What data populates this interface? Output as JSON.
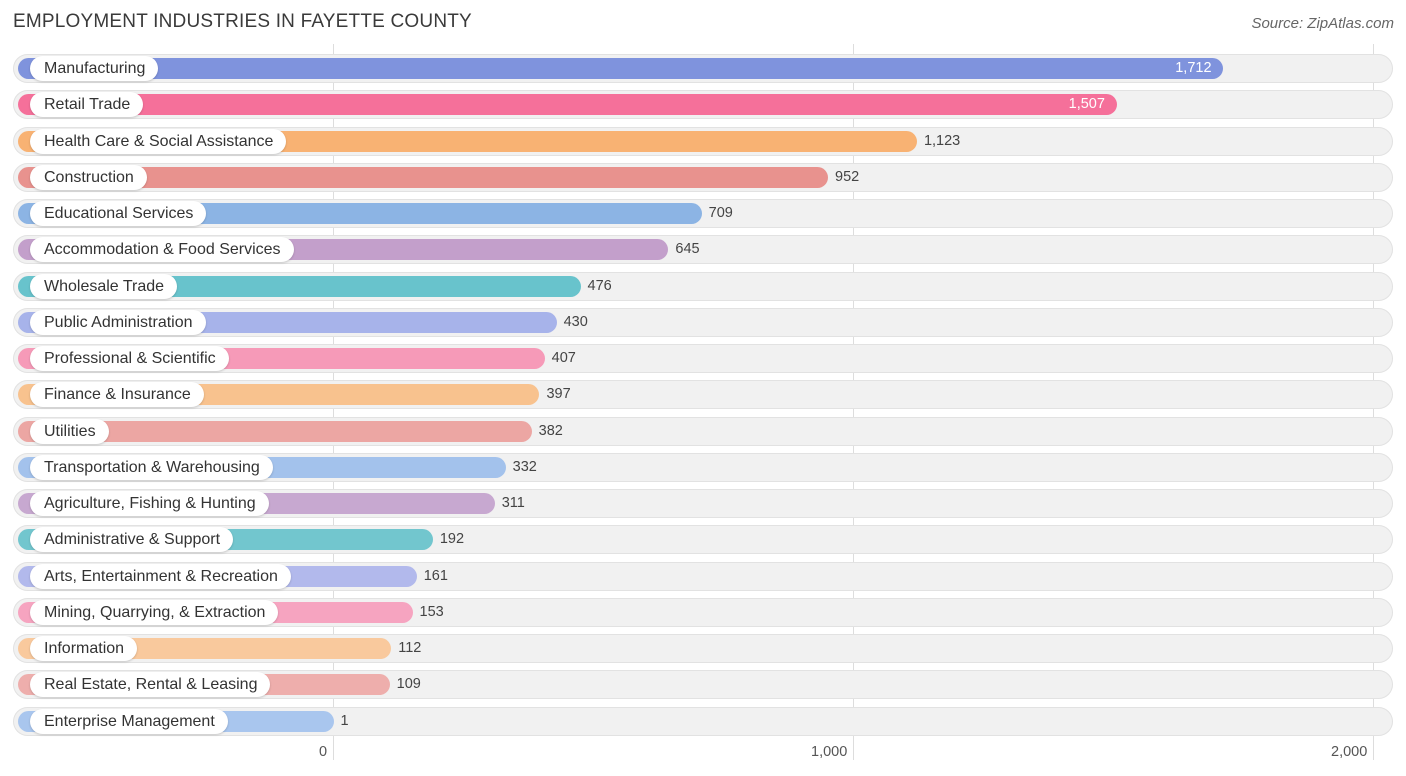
{
  "title": "EMPLOYMENT INDUSTRIES IN FAYETTE COUNTY",
  "source": "Source: ZipAtlas.com",
  "chart_data": {
    "type": "bar",
    "orientation": "horizontal",
    "title": "EMPLOYMENT INDUSTRIES IN FAYETTE COUNTY",
    "xlim": [
      0,
      2000
    ],
    "ticks": [
      {
        "value": 0,
        "label": "0"
      },
      {
        "value": 1000,
        "label": "1,000"
      },
      {
        "value": 2000,
        "label": "2,000"
      }
    ],
    "categories": [
      "Manufacturing",
      "Retail Trade",
      "Health Care & Social Assistance",
      "Construction",
      "Educational Services",
      "Accommodation & Food Services",
      "Wholesale Trade",
      "Public Administration",
      "Professional & Scientific",
      "Finance & Insurance",
      "Utilities",
      "Transportation & Warehousing",
      "Agriculture, Fishing & Hunting",
      "Administrative & Support",
      "Arts, Entertainment & Recreation",
      "Mining, Quarrying, & Extraction",
      "Information",
      "Real Estate, Rental & Leasing",
      "Enterprise Management"
    ],
    "values": [
      1712,
      1507,
      1123,
      952,
      709,
      645,
      476,
      430,
      407,
      397,
      382,
      332,
      311,
      192,
      161,
      153,
      112,
      109,
      1
    ],
    "value_labels": [
      "1,712",
      "1,507",
      "1,123",
      "952",
      "709",
      "645",
      "476",
      "430",
      "407",
      "397",
      "382",
      "332",
      "311",
      "192",
      "161",
      "153",
      "112",
      "109",
      "1"
    ],
    "colors": [
      "#7f93dd",
      "#f5709a",
      "#f8b273",
      "#e8928e",
      "#8cb4e4",
      "#c39fcb",
      "#68c3cc",
      "#a7b3ea",
      "#f69ab8",
      "#f8c28e",
      "#eca6a3",
      "#a3c2ec",
      "#c7a8d0",
      "#72c6ce",
      "#b2b9ec",
      "#f6a4c0",
      "#f9c99d",
      "#eeaeac",
      "#a9c6ee"
    ]
  }
}
